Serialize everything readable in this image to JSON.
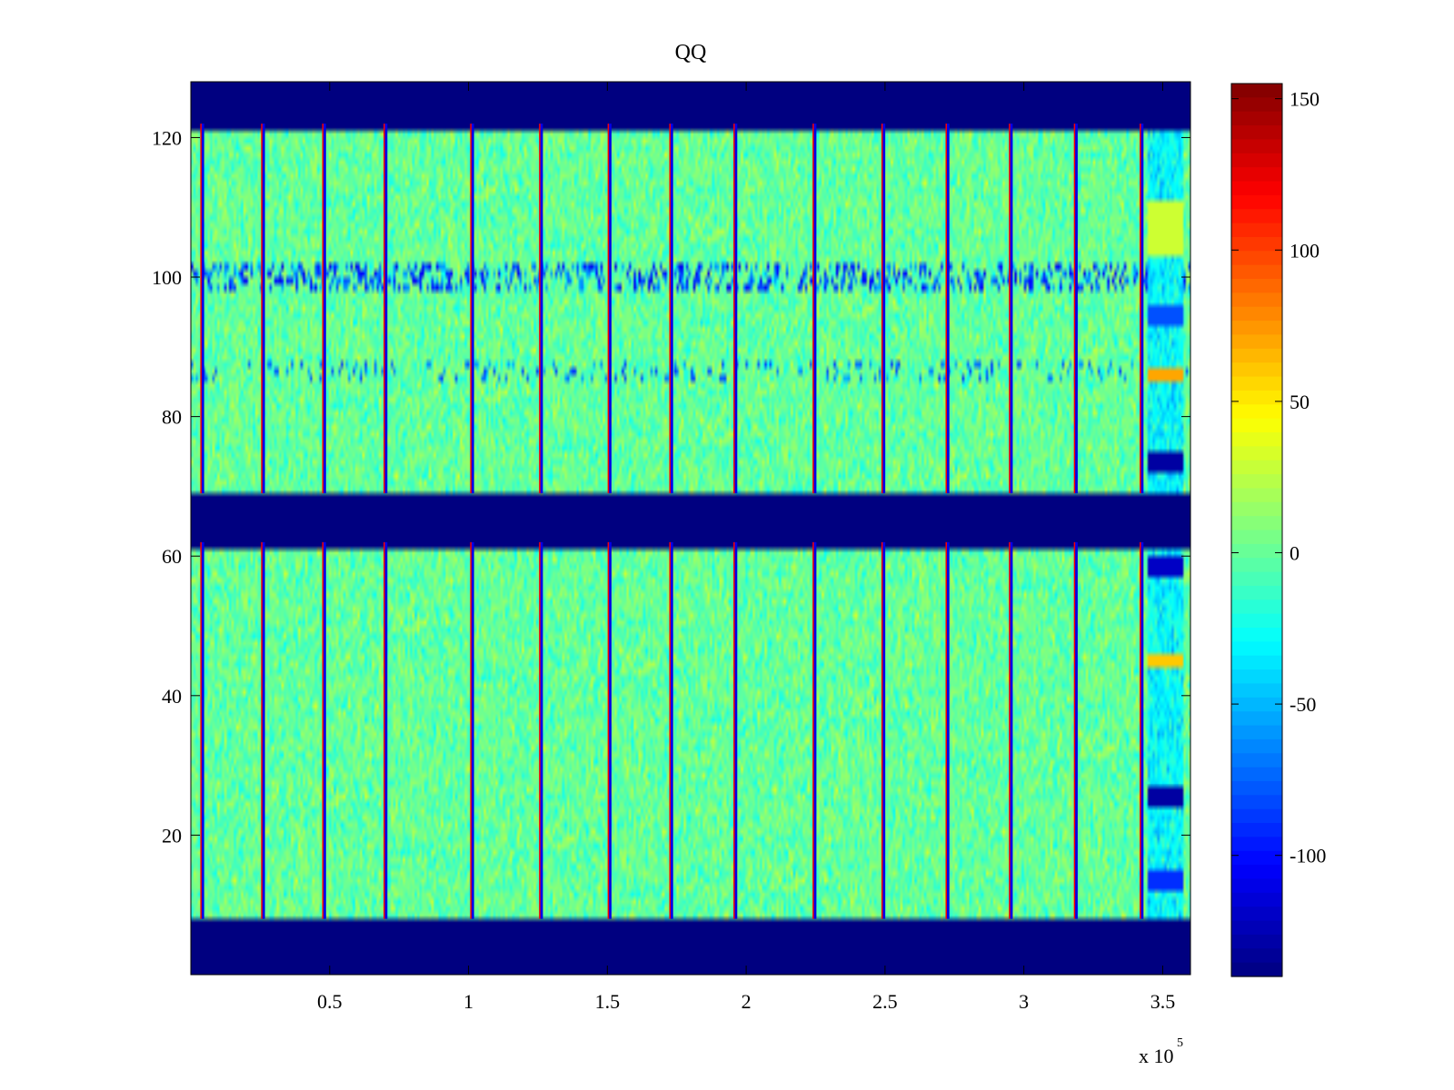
{
  "chart_data": {
    "type": "heatmap",
    "title": "QQ",
    "xlabel": "",
    "ylabel": "",
    "x_exponent_label": "x 10",
    "x_exponent_value": "5",
    "xlim": [
      0,
      360000
    ],
    "ylim": [
      0,
      128
    ],
    "x_ticks": [
      0.5,
      1,
      1.5,
      2,
      2.5,
      3,
      3.5
    ],
    "y_ticks": [
      20,
      40,
      60,
      80,
      100,
      120
    ],
    "grid": false,
    "colorbar": {
      "colormap": "jet",
      "clim": [
        -140,
        155
      ],
      "ticks": [
        -100,
        -50,
        0,
        50,
        100,
        150
      ],
      "position": "right"
    },
    "rows": {
      "active_ranges": [
        [
          8,
          61
        ],
        [
          69,
          121
        ]
      ],
      "empty_value": -140
    },
    "segment_boundaries_x": [
      4300,
      26200,
      48200,
      70300,
      101500,
      126300,
      151000,
      173200,
      196300,
      224800,
      249600,
      272700,
      295500,
      318900,
      342600
    ],
    "band_rows_low": [
      99,
      100,
      101
    ],
    "band_rows_mid": [
      86,
      87
    ],
    "tail_region_x": [
      345000,
      357000
    ],
    "tail_blocks": [
      {
        "rows": [
          24,
          26
        ],
        "value": -130
      },
      {
        "rows": [
          72,
          74
        ],
        "value": -130
      },
      {
        "rows": [
          57,
          59
        ],
        "value": -120
      },
      {
        "rows": [
          85,
          86
        ],
        "value": 70
      },
      {
        "rows": [
          44,
          45
        ],
        "value": 60
      },
      {
        "rows": [
          12,
          14
        ],
        "value": -90
      },
      {
        "rows": [
          93,
          95
        ],
        "value": -80
      },
      {
        "rows": [
          103,
          110
        ],
        "value": 30
      }
    ],
    "background_value": 0
  }
}
